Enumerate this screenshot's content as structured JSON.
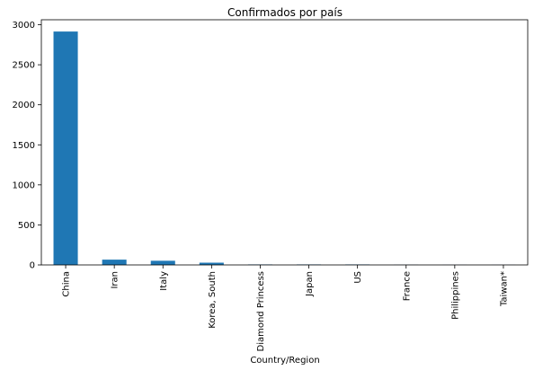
{
  "chart_data": {
    "type": "bar",
    "title": "Confirmados por país",
    "xlabel": "Country/Region",
    "ylabel": "",
    "categories": [
      "China",
      "Iran",
      "Italy",
      "Korea, South",
      "Diamond Princess",
      "Japan",
      "US",
      "France",
      "Philippines",
      "Taiwan*"
    ],
    "values": [
      2915,
      66,
      52,
      28,
      6,
      6,
      6,
      2,
      1,
      1
    ],
    "ylim": [
      0,
      3062
    ],
    "yticks": [
      0,
      500,
      1000,
      1500,
      2000,
      2500,
      3000
    ],
    "grid": false,
    "legend": "none",
    "bar_color": "#1f77b4"
  }
}
